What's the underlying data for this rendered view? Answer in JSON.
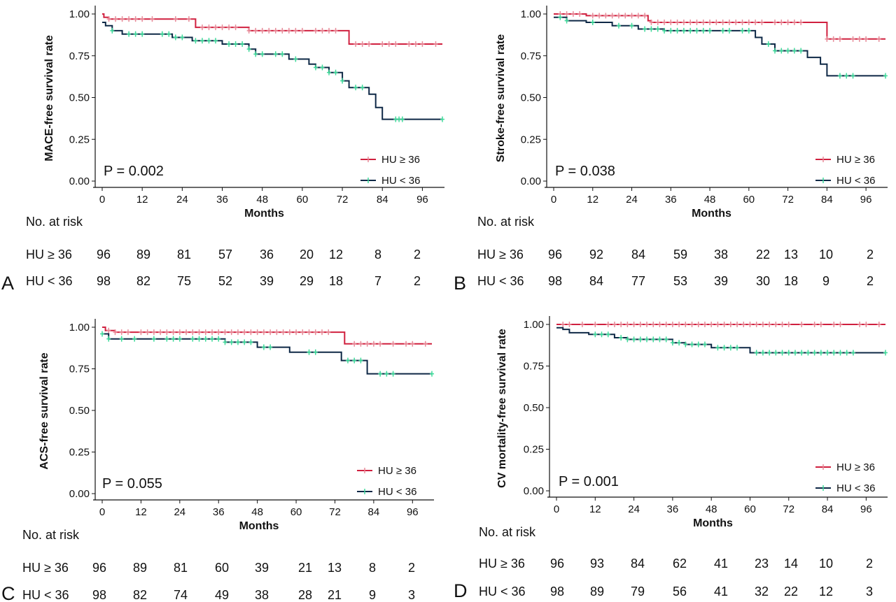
{
  "colors": {
    "high_hu": "#d0203f",
    "low_hu": "#0e2846",
    "censor_high_hu": "#e88a98",
    "censor_low_hu": "#3ddc9a"
  },
  "chart_data": [
    {
      "type": "line",
      "panel_letter": "A",
      "ylabel": "MACE-free survival rate",
      "xlabel": "Months",
      "x_ticks": [
        "0",
        "12",
        "24",
        "36",
        "48",
        "60",
        "72",
        "84",
        "96"
      ],
      "y_ticks": [
        "0.00",
        "0.25",
        "0.50",
        "0.75",
        "1.00"
      ],
      "xlim": [
        0,
        102
      ],
      "ylim": [
        0,
        1
      ],
      "p_value": "P = 0.002",
      "legend_position": "bottom-right",
      "series": [
        {
          "name": "HU ≥ 36",
          "color_key": "high_hu",
          "censor_color_key": "censor_high_hu",
          "steps": [
            [
              0,
              1.0
            ],
            [
              0.5,
              0.98
            ],
            [
              2,
              0.97
            ],
            [
              28,
              0.92
            ],
            [
              44,
              0.9
            ],
            [
              74,
              0.82
            ],
            [
              102,
              0.82
            ]
          ],
          "censors": [
            2,
            4,
            6,
            8,
            10,
            12,
            15,
            22,
            26,
            30,
            32,
            34,
            36,
            38,
            40,
            44,
            46,
            48,
            50,
            52,
            54,
            56,
            58,
            60,
            64,
            66,
            68,
            70,
            76,
            78,
            80,
            84,
            86,
            88,
            92,
            94,
            96,
            100
          ]
        },
        {
          "name": "HU < 36",
          "color_key": "low_hu",
          "censor_color_key": "censor_low_hu",
          "steps": [
            [
              0,
              0.95
            ],
            [
              1,
              0.93
            ],
            [
              3,
              0.9
            ],
            [
              6,
              0.88
            ],
            [
              21,
              0.86
            ],
            [
              27,
              0.84
            ],
            [
              36,
              0.82
            ],
            [
              44,
              0.79
            ],
            [
              46,
              0.76
            ],
            [
              56,
              0.73
            ],
            [
              62,
              0.7
            ],
            [
              64,
              0.68
            ],
            [
              68,
              0.65
            ],
            [
              72,
              0.6
            ],
            [
              74,
              0.56
            ],
            [
              80,
              0.52
            ],
            [
              82,
              0.44
            ],
            [
              84,
              0.37
            ],
            [
              102,
              0.37
            ]
          ],
          "censors": [
            3,
            8,
            10,
            12,
            18,
            20,
            22,
            24,
            28,
            30,
            32,
            34,
            38,
            40,
            42,
            44,
            46,
            48,
            52,
            54,
            58,
            64,
            66,
            68,
            70,
            72,
            76,
            78,
            88,
            89,
            90,
            102
          ]
        }
      ],
      "risk_table": {
        "title": "No. at risk",
        "rows": [
          {
            "label": "HU ≥ 36",
            "counts": [
              "96",
              "89",
              "81",
              "57",
              "36",
              "20",
              "12",
              "8",
              "2"
            ]
          },
          {
            "label": "HU < 36",
            "counts": [
              "98",
              "82",
              "75",
              "52",
              "39",
              "29",
              "18",
              "7",
              "2"
            ]
          }
        ]
      }
    },
    {
      "type": "line",
      "panel_letter": "B",
      "ylabel": "Stroke-free survival rate",
      "xlabel": "Months",
      "x_ticks": [
        "0",
        "12",
        "24",
        "36",
        "48",
        "60",
        "72",
        "84",
        "96"
      ],
      "y_ticks": [
        "0.00",
        "0.25",
        "0.50",
        "0.75",
        "1.00"
      ],
      "xlim": [
        0,
        102
      ],
      "ylim": [
        0,
        1
      ],
      "p_value": "P = 0.038",
      "legend_position": "bottom-right",
      "series": [
        {
          "name": "HU ≥ 36",
          "color_key": "high_hu",
          "censor_color_key": "censor_high_hu",
          "steps": [
            [
              0,
              1.0
            ],
            [
              10,
              0.99
            ],
            [
              29,
              0.96
            ],
            [
              30,
              0.95
            ],
            [
              84,
              0.85
            ],
            [
              102,
              0.85
            ]
          ],
          "censors": [
            2,
            4,
            6,
            8,
            12,
            14,
            16,
            18,
            20,
            22,
            24,
            26,
            28,
            30,
            32,
            34,
            36,
            38,
            40,
            42,
            44,
            46,
            48,
            50,
            52,
            54,
            56,
            58,
            60,
            62,
            64,
            68,
            70,
            72,
            74,
            76,
            84,
            86,
            88,
            92,
            94,
            96,
            100
          ]
        },
        {
          "name": "HU < 36",
          "color_key": "low_hu",
          "censor_color_key": "censor_low_hu",
          "steps": [
            [
              0,
              0.98
            ],
            [
              4,
              0.96
            ],
            [
              10,
              0.95
            ],
            [
              18,
              0.93
            ],
            [
              26,
              0.91
            ],
            [
              34,
              0.9
            ],
            [
              62,
              0.86
            ],
            [
              64,
              0.82
            ],
            [
              68,
              0.78
            ],
            [
              78,
              0.74
            ],
            [
              82,
              0.7
            ],
            [
              84,
              0.63
            ],
            [
              102,
              0.63
            ]
          ],
          "censors": [
            2,
            4,
            12,
            20,
            24,
            28,
            30,
            32,
            34,
            36,
            38,
            40,
            42,
            44,
            46,
            48,
            52,
            54,
            58,
            60,
            66,
            68,
            70,
            72,
            74,
            76,
            88,
            90,
            92,
            102
          ]
        }
      ],
      "risk_table": {
        "title": "No. at risk",
        "rows": [
          {
            "label": "HU ≥ 36",
            "counts": [
              "96",
              "92",
              "84",
              "59",
              "38",
              "22",
              "13",
              "10",
              "2"
            ]
          },
          {
            "label": "HU < 36",
            "counts": [
              "98",
              "84",
              "77",
              "53",
              "39",
              "30",
              "18",
              "9",
              "2"
            ]
          }
        ]
      }
    },
    {
      "type": "line",
      "panel_letter": "C",
      "ylabel": "ACS-free survival rate",
      "xlabel": "Months",
      "x_ticks": [
        "0",
        "12",
        "24",
        "36",
        "48",
        "60",
        "72",
        "84",
        "96"
      ],
      "y_ticks": [
        "0.00",
        "0.25",
        "0.50",
        "0.75",
        "1.00"
      ],
      "xlim": [
        0,
        102
      ],
      "ylim": [
        0,
        1
      ],
      "p_value": "P = 0.055",
      "legend_position": "bottom-right",
      "series": [
        {
          "name": "HU ≥ 36",
          "color_key": "high_hu",
          "censor_color_key": "censor_high_hu",
          "steps": [
            [
              0,
              1.0
            ],
            [
              1,
              0.98
            ],
            [
              4,
              0.97
            ],
            [
              75,
              0.9
            ],
            [
              102,
              0.9
            ]
          ],
          "censors": [
            2,
            4,
            6,
            8,
            12,
            14,
            16,
            18,
            20,
            22,
            24,
            26,
            28,
            30,
            32,
            34,
            36,
            38,
            40,
            42,
            44,
            46,
            48,
            50,
            52,
            54,
            56,
            58,
            60,
            62,
            64,
            66,
            68,
            70,
            78,
            80,
            82,
            84,
            86,
            90,
            94,
            96,
            100
          ]
        },
        {
          "name": "HU < 36",
          "color_key": "low_hu",
          "censor_color_key": "censor_low_hu",
          "steps": [
            [
              0,
              0.96
            ],
            [
              2,
              0.93
            ],
            [
              38,
              0.91
            ],
            [
              48,
              0.88
            ],
            [
              58,
              0.85
            ],
            [
              74,
              0.8
            ],
            [
              82,
              0.72
            ],
            [
              102,
              0.72
            ]
          ],
          "censors": [
            0,
            2,
            6,
            10,
            16,
            20,
            22,
            24,
            28,
            30,
            32,
            34,
            36,
            38,
            40,
            42,
            44,
            46,
            50,
            52,
            64,
            66,
            76,
            78,
            80,
            86,
            88,
            90,
            102
          ]
        }
      ],
      "risk_table": {
        "title": "No. at risk",
        "rows": [
          {
            "label": "HU ≥ 36",
            "counts": [
              "96",
              "89",
              "81",
              "60",
              "39",
              "21",
              "13",
              "8",
              "2"
            ]
          },
          {
            "label": "HU < 36",
            "counts": [
              "98",
              "82",
              "74",
              "49",
              "38",
              "28",
              "21",
              "9",
              "3"
            ]
          }
        ]
      }
    },
    {
      "type": "line",
      "panel_letter": "D",
      "ylabel": "CV mortality-free survival rate",
      "xlabel": "Months",
      "x_ticks": [
        "0",
        "12",
        "24",
        "36",
        "48",
        "60",
        "72",
        "84",
        "96"
      ],
      "y_ticks": [
        "0.00",
        "0.25",
        "0.50",
        "0.75",
        "1.00"
      ],
      "xlim": [
        0,
        102
      ],
      "ylim": [
        0,
        1
      ],
      "p_value": "P = 0.001",
      "legend_position": "bottom-right",
      "series": [
        {
          "name": "HU ≥ 36",
          "color_key": "high_hu",
          "censor_color_key": "censor_high_hu",
          "steps": [
            [
              0,
              1.0
            ],
            [
              102,
              1.0
            ]
          ],
          "censors": [
            2,
            4,
            8,
            12,
            16,
            18,
            20,
            22,
            24,
            26,
            28,
            30,
            32,
            34,
            36,
            38,
            40,
            42,
            44,
            46,
            48,
            50,
            52,
            54,
            56,
            58,
            60,
            62,
            64,
            66,
            68,
            70,
            72,
            76,
            80,
            82,
            86,
            88,
            94,
            96,
            100
          ]
        },
        {
          "name": "HU < 36",
          "color_key": "low_hu",
          "censor_color_key": "censor_low_hu",
          "steps": [
            [
              0,
              0.98
            ],
            [
              2,
              0.97
            ],
            [
              4,
              0.95
            ],
            [
              10,
              0.94
            ],
            [
              18,
              0.92
            ],
            [
              22,
              0.91
            ],
            [
              36,
              0.89
            ],
            [
              40,
              0.88
            ],
            [
              48,
              0.86
            ],
            [
              60,
              0.83
            ],
            [
              102,
              0.83
            ]
          ],
          "censors": [
            12,
            14,
            16,
            20,
            22,
            24,
            26,
            28,
            30,
            32,
            34,
            36,
            38,
            40,
            42,
            44,
            46,
            50,
            52,
            54,
            56,
            62,
            64,
            66,
            68,
            70,
            72,
            74,
            76,
            78,
            80,
            82,
            84,
            86,
            88,
            90,
            92,
            102
          ]
        }
      ],
      "risk_table": {
        "title": "No. at risk",
        "rows": [
          {
            "label": "HU ≥ 36",
            "counts": [
              "96",
              "93",
              "84",
              "62",
              "41",
              "23",
              "14",
              "10",
              "2"
            ]
          },
          {
            "label": "HU < 36",
            "counts": [
              "98",
              "89",
              "79",
              "56",
              "41",
              "32",
              "22",
              "12",
              "3"
            ]
          }
        ]
      }
    }
  ]
}
